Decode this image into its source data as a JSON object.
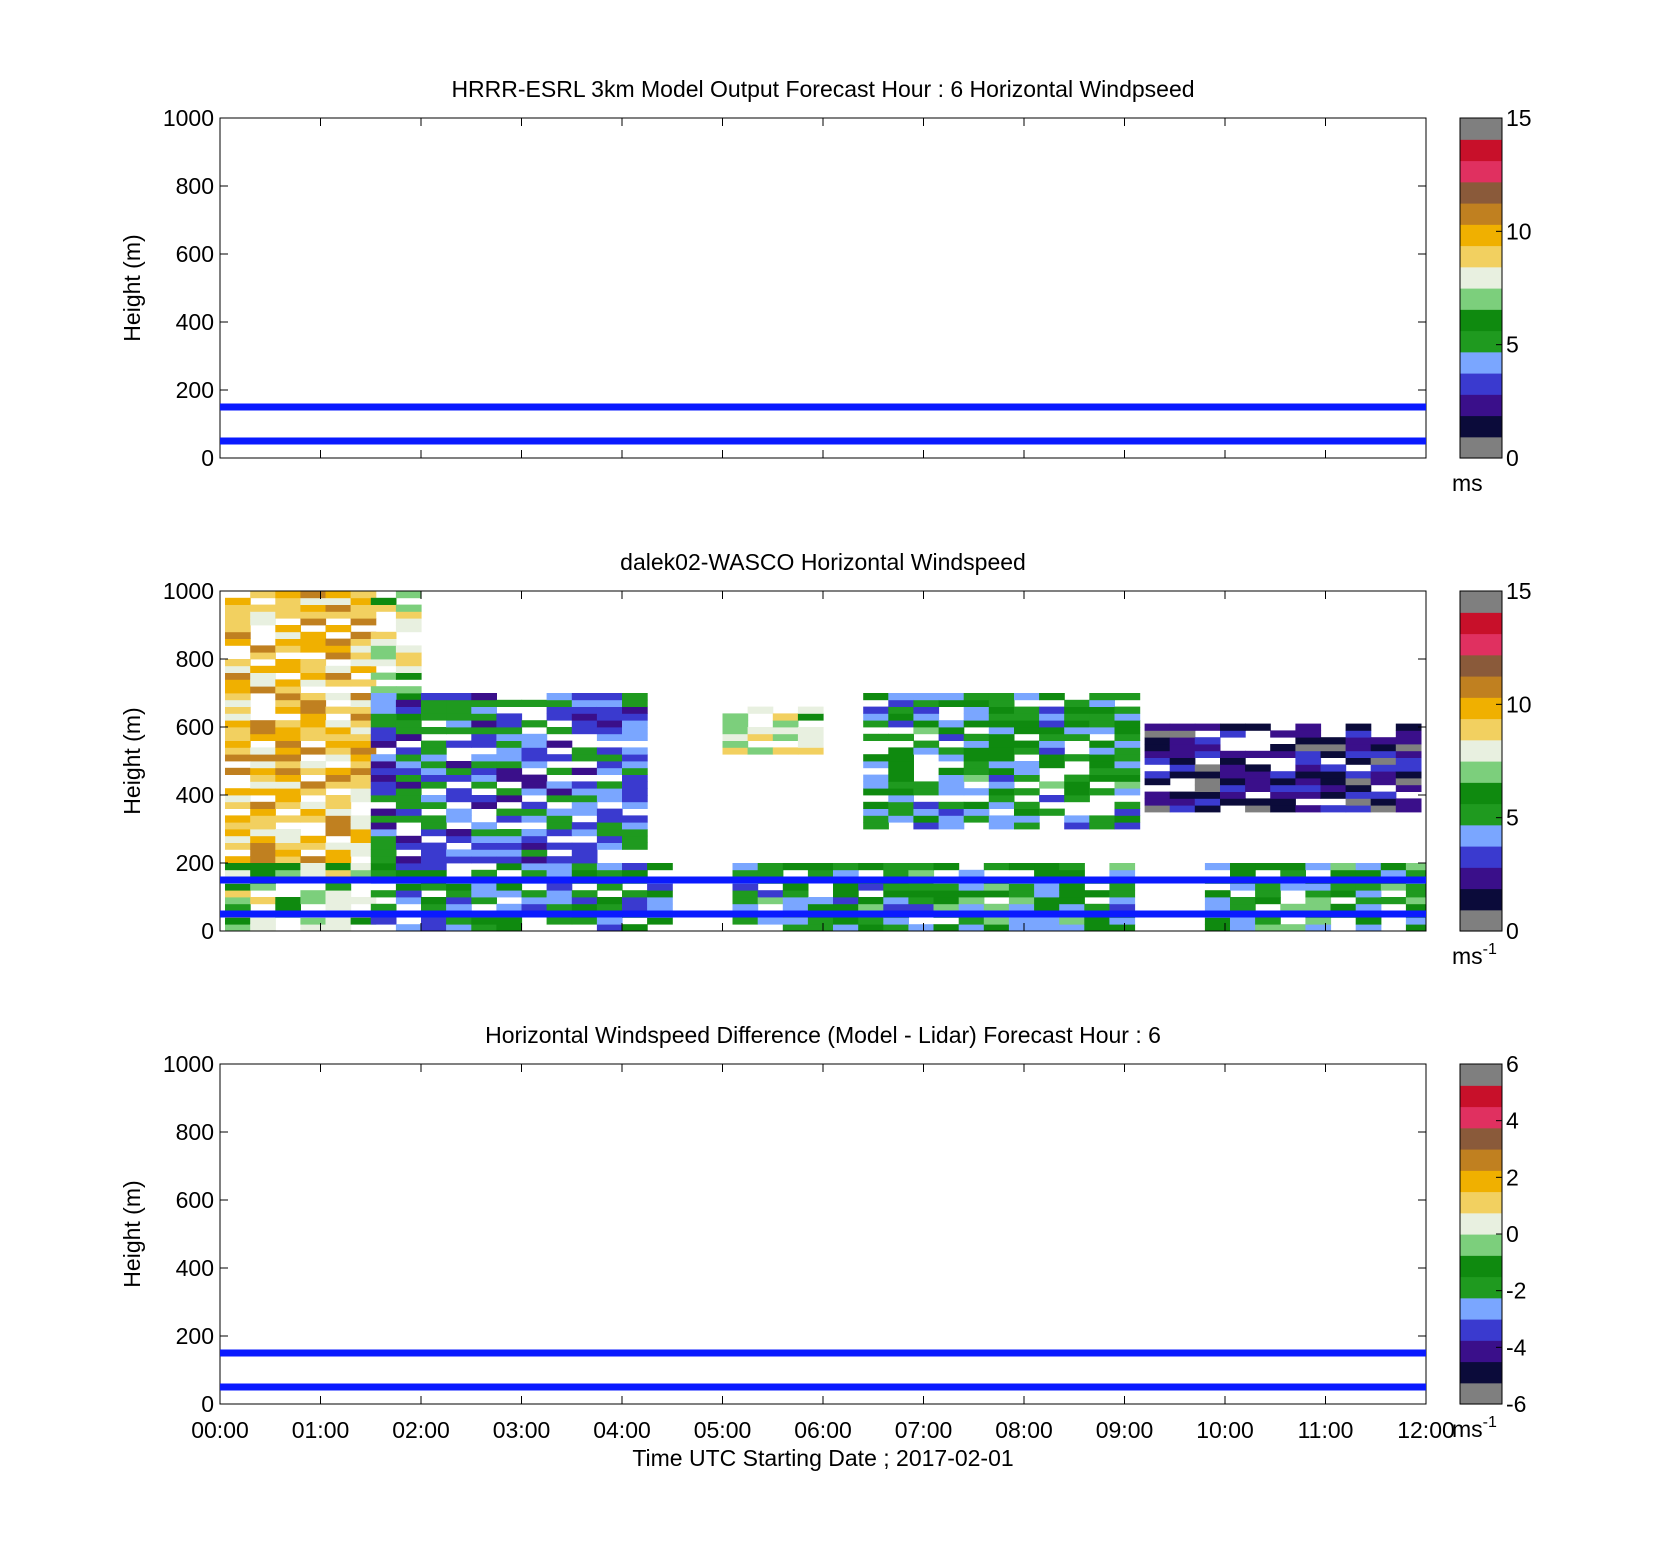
{
  "figure": {
    "xlabel": "Time UTC  Starting Date ; 2017-02-01",
    "x_tick_labels": [
      "00:00",
      "01:00",
      "02:00",
      "03:00",
      "04:00",
      "05:00",
      "06:00",
      "07:00",
      "08:00",
      "09:00",
      "10:00",
      "11:00",
      "12:00"
    ]
  },
  "chart_data": [
    {
      "type": "heatmap",
      "title": "HRRR-ESRL 3km Model Output   Forecast Hour : 6 Horizontal Windpseed",
      "ylabel": "Height (m)",
      "xlim": [
        "00:00",
        "12:00"
      ],
      "ylim": [
        0,
        1000
      ],
      "y_tick_labels": [
        "0",
        "200",
        "400",
        "600",
        "800",
        "1000"
      ],
      "reference_lines_m": [
        50,
        150
      ],
      "reference_line_color": "#0a1aff",
      "colorbar": {
        "label": "ms",
        "label_sup": "",
        "range": [
          0,
          15
        ],
        "tick_labels": [
          "0",
          "5",
          "10",
          "15"
        ],
        "tick_values": [
          0,
          5,
          10,
          15
        ]
      },
      "has_data": false
    },
    {
      "type": "heatmap",
      "title": "dalek02-WASCO  Horizontal Windspeed",
      "ylabel": "Height (m)",
      "xlim": [
        "00:00",
        "12:00"
      ],
      "ylim": [
        0,
        1000
      ],
      "y_tick_labels": [
        "0",
        "200",
        "400",
        "600",
        "800",
        "1000"
      ],
      "reference_lines_m": [
        50,
        150
      ],
      "reference_line_color": "#0a1aff",
      "colorbar": {
        "label": "ms",
        "label_sup": "-1",
        "range": [
          0,
          15
        ],
        "tick_labels": [
          "0",
          "5",
          "10",
          "15"
        ],
        "tick_values": [
          0,
          5,
          10,
          15
        ]
      },
      "has_data": true,
      "data_regions": [
        {
          "t": [
            0.05,
            1.5
          ],
          "h": [
            200,
            1000
          ],
          "speed": 9.5
        },
        {
          "t": [
            1.5,
            2.0
          ],
          "h": [
            600,
            1000
          ],
          "speed": 7.5
        },
        {
          "t": [
            0.05,
            1.5
          ],
          "h": [
            0,
            200
          ],
          "speed": 7.2
        },
        {
          "t": [
            1.5,
            4.3
          ],
          "h": [
            0,
            200
          ],
          "speed": 4.8
        },
        {
          "t": [
            1.5,
            4.1
          ],
          "h": [
            200,
            700
          ],
          "speed": 4.0
        },
        {
          "t": [
            5.0,
            6.0
          ],
          "h": [
            500,
            650
          ],
          "speed": 8.0
        },
        {
          "t": [
            5.1,
            9.1
          ],
          "h": [
            0,
            200
          ],
          "speed": 5.2
        },
        {
          "t": [
            6.4,
            9.1
          ],
          "h": [
            300,
            700
          ],
          "speed": 5.0
        },
        {
          "t": [
            9.2,
            11.9
          ],
          "h": [
            350,
            600
          ],
          "speed": 2.0
        },
        {
          "t": [
            9.8,
            11.9
          ],
          "h": [
            0,
            200
          ],
          "speed": 5.5
        }
      ]
    },
    {
      "type": "heatmap",
      "title": "Horizontal Windspeed Difference (Model - Lidar) Forecast Hour : 6",
      "ylabel": "Height (m)",
      "xlim": [
        "00:00",
        "12:00"
      ],
      "ylim": [
        0,
        1000
      ],
      "y_tick_labels": [
        "0",
        "200",
        "400",
        "600",
        "800",
        "1000"
      ],
      "reference_lines_m": [
        50,
        150
      ],
      "reference_line_color": "#0a1aff",
      "colorbar": {
        "label": "ms",
        "label_sup": "-1",
        "range": [
          -6,
          6
        ],
        "tick_labels": [
          "-6",
          "-4",
          "-2",
          "0",
          "2",
          "4",
          "6"
        ],
        "tick_values": [
          -6,
          -4,
          -2,
          0,
          2,
          4,
          6
        ]
      },
      "has_data": false
    }
  ],
  "colormap": [
    "#7f7f7f",
    "#0b0b3a",
    "#3a0f8a",
    "#3a3acf",
    "#7aa6ff",
    "#1f9a1f",
    "#0f8a0f",
    "#7ccf7c",
    "#e8f0e0",
    "#f2d060",
    "#f0b000",
    "#c08020",
    "#8a5a3a",
    "#e03060",
    "#c8102a",
    "#7f7f7f"
  ]
}
